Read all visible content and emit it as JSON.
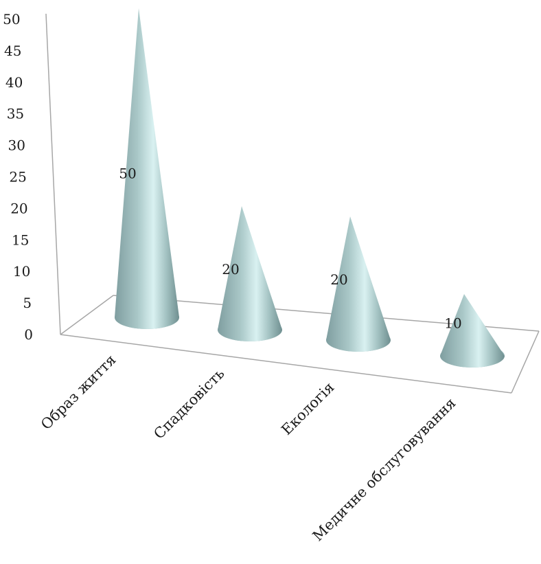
{
  "chart_data": {
    "type": "bar",
    "style": "3d-cone",
    "categories": [
      "Образ життя",
      "Спадковість",
      "Екологія",
      "Медичне обслуговування"
    ],
    "values": [
      50,
      20,
      20,
      10
    ],
    "data_labels": [
      "50",
      "20",
      "20",
      "10"
    ],
    "y_ticks": [
      "0",
      "5",
      "10",
      "15",
      "20",
      "25",
      "30",
      "35",
      "40",
      "45",
      "50"
    ],
    "ylim": [
      0,
      50
    ],
    "title": "",
    "xlabel": "",
    "ylabel": "",
    "grid": false,
    "legend": "none",
    "colors": {
      "cone_base": "#9fbdbd",
      "cone_highlight": "#e6fbfb",
      "cone_shadow": "#6f8f90",
      "axis": "#a6a6a6"
    }
  }
}
